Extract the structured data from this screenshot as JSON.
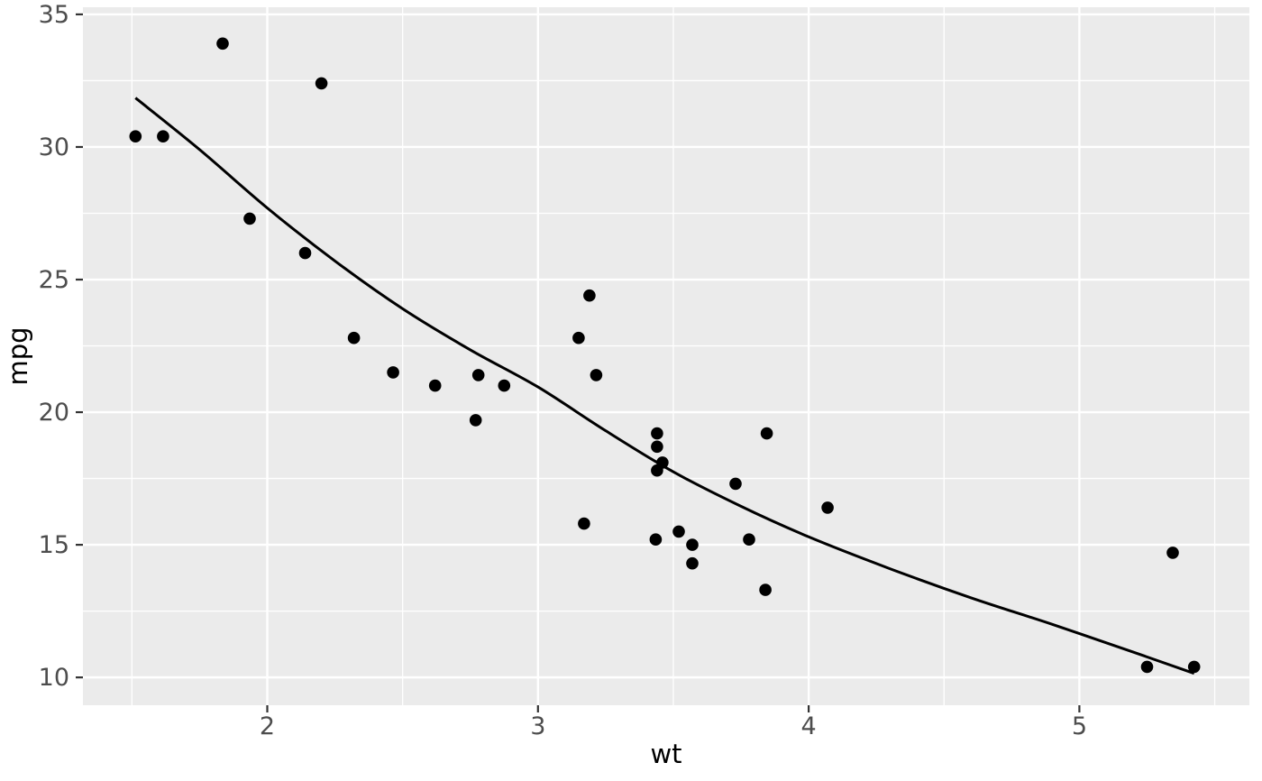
{
  "figure": {
    "background_color": "#FFFFFF"
  },
  "chart_data": {
    "type": "scatter",
    "title": "",
    "xlabel": "wt",
    "ylabel": "mpg",
    "legend_position": "none",
    "grid": true,
    "xlim": [
      1.319,
      5.628
    ],
    "ylim": [
      8.95,
      35.27
    ],
    "x_major_ticks": [
      2,
      3,
      4,
      5
    ],
    "x_minor_ticks": [
      1.5,
      2.5,
      3.5,
      4.5,
      5.5
    ],
    "y_major_ticks": [
      10,
      15,
      20,
      25,
      30,
      35
    ],
    "y_minor_ticks": [
      12.5,
      17.5,
      22.5,
      27.5,
      32.5
    ],
    "points": [
      [
        2.62,
        21.0
      ],
      [
        2.875,
        21.0
      ],
      [
        2.32,
        22.8
      ],
      [
        3.215,
        21.4
      ],
      [
        3.44,
        18.7
      ],
      [
        3.46,
        18.1
      ],
      [
        3.57,
        14.3
      ],
      [
        3.19,
        24.4
      ],
      [
        3.15,
        22.8
      ],
      [
        3.44,
        19.2
      ],
      [
        3.44,
        17.8
      ],
      [
        4.07,
        16.4
      ],
      [
        3.73,
        17.3
      ],
      [
        3.78,
        15.2
      ],
      [
        5.25,
        10.4
      ],
      [
        5.424,
        10.4
      ],
      [
        5.345,
        14.7
      ],
      [
        2.2,
        32.4
      ],
      [
        1.615,
        30.4
      ],
      [
        1.835,
        33.9
      ],
      [
        2.465,
        21.5
      ],
      [
        3.52,
        15.5
      ],
      [
        3.435,
        15.2
      ],
      [
        3.84,
        13.3
      ],
      [
        3.845,
        19.2
      ],
      [
        1.935,
        27.3
      ],
      [
        2.14,
        26.0
      ],
      [
        1.513,
        30.4
      ],
      [
        3.17,
        15.8
      ],
      [
        2.77,
        19.7
      ],
      [
        3.57,
        15.0
      ],
      [
        2.78,
        21.4
      ]
    ],
    "smooth_line": [
      [
        1.513,
        31.85
      ],
      [
        1.75,
        29.9
      ],
      [
        2.0,
        27.7
      ],
      [
        2.25,
        25.7
      ],
      [
        2.5,
        23.9
      ],
      [
        2.75,
        22.35
      ],
      [
        3.0,
        20.95
      ],
      [
        3.25,
        19.3
      ],
      [
        3.5,
        17.75
      ],
      [
        3.75,
        16.45
      ],
      [
        4.0,
        15.3
      ],
      [
        4.3,
        14.1
      ],
      [
        4.6,
        13.0
      ],
      [
        4.9,
        12.0
      ],
      [
        5.2,
        10.95
      ],
      [
        5.424,
        10.15
      ]
    ],
    "style": {
      "panel_background": "#EBEBEB",
      "grid_major_color": "#FFFFFF",
      "grid_minor_color": "#FFFFFF",
      "point_color": "#000000",
      "smooth_line_color": "#000000",
      "tick_label_color": "#4D4D4D",
      "tick_mark_color": "#333333",
      "axis_title_color": "#000000"
    }
  }
}
